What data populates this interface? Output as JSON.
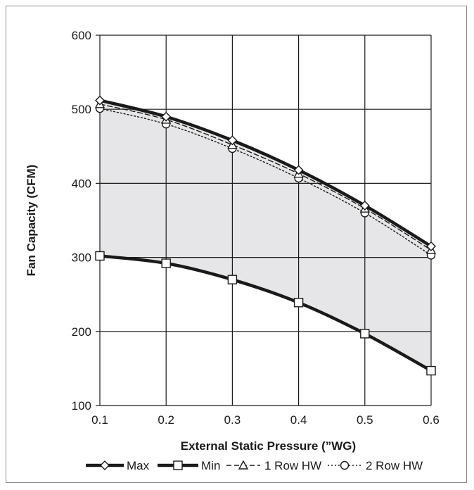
{
  "chart_data": {
    "type": "line",
    "xlabel": "External Static Pressure (”WG)",
    "ylabel": "Fan Capacity (CFM)",
    "xlim": [
      0.1,
      0.6
    ],
    "ylim": [
      100,
      600
    ],
    "x_ticks": [
      "0.1",
      "0.2",
      "0.3",
      "0.4",
      "0.5",
      "0.6"
    ],
    "y_ticks": [
      "100",
      "200",
      "300",
      "400",
      "500",
      "600"
    ],
    "grid": true,
    "shaded_region": "between Max and Min",
    "legend_position": "bottom",
    "x": [
      0.1,
      0.2,
      0.3,
      0.4,
      0.5,
      0.6
    ],
    "series": [
      {
        "name": "Max",
        "values": [
          512,
          490,
          458,
          418,
          370,
          315
        ],
        "line": "solid-thick",
        "marker": "diamond",
        "color": "#1a1a1a"
      },
      {
        "name": "Min",
        "values": [
          302,
          292,
          270,
          239,
          197,
          147
        ],
        "line": "solid-thick",
        "marker": "square",
        "color": "#1a1a1a"
      },
      {
        "name": "1 Row HW",
        "values": [
          507,
          486,
          452,
          413,
          366,
          310
        ],
        "line": "dashed",
        "marker": "triangle",
        "color": "#1a1a1a"
      },
      {
        "name": "2 Row HW",
        "values": [
          501,
          480,
          447,
          407,
          360,
          303
        ],
        "line": "dotted",
        "marker": "circle",
        "color": "#1a1a1a"
      }
    ],
    "colors": {
      "fill": "#e6e6e8",
      "grid": "#1a1a1a",
      "frame": "#8a8a8a"
    }
  }
}
